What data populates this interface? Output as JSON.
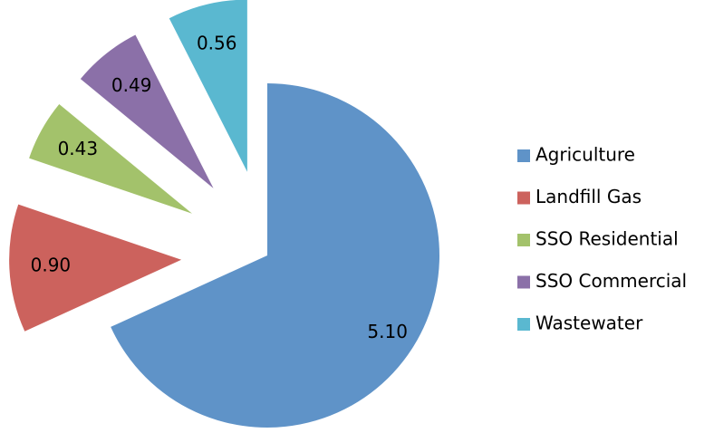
{
  "chart_data": {
    "type": "pie",
    "categories": [
      "Agriculture",
      "Landfill Gas",
      "SSO Residential",
      "SSO Commercial",
      "Wastewater"
    ],
    "values": [
      5.1,
      0.9,
      0.43,
      0.49,
      0.56
    ],
    "value_labels": [
      "5.10",
      "0.90",
      "0.43",
      "0.49",
      "0.56"
    ],
    "colors": [
      "#5f93c8",
      "#cc625d",
      "#a3c26b",
      "#8b70a8",
      "#5ab8d0"
    ],
    "legend": "right"
  }
}
